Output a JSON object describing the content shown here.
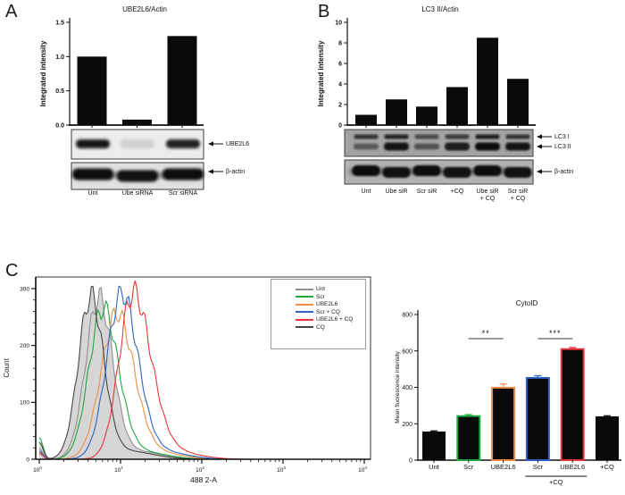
{
  "panels": {
    "a": {
      "letter": "A"
    },
    "b": {
      "letter": "B"
    },
    "c": {
      "letter": "C"
    }
  },
  "blot_a": {
    "lane_labels": [
      "Unt",
      "Ube siRNA",
      "Scr siRNA"
    ],
    "band_labels": [
      {
        "arrow": "←",
        "text": "UBE2L6"
      },
      {
        "arrow": "←",
        "text": "β-actin"
      }
    ],
    "bands": {
      "ube2l6": [
        0.95,
        0.12,
        0.9
      ],
      "actin": [
        1,
        0.97,
        1
      ]
    }
  },
  "blot_b": {
    "lane_labels": [
      "Unt",
      "Ube siR",
      "Scr siR",
      "+CQ",
      "Ube siR\n+ CQ",
      "Scr siR\n+ CQ"
    ],
    "band_labels": [
      {
        "arrow": "←",
        "text": "LC3 I"
      },
      {
        "arrow": "←",
        "text": "LC3 II"
      },
      {
        "arrow": "←",
        "text": "β-actin"
      }
    ],
    "bands": {
      "lc3i": [
        0.75,
        0.85,
        0.6,
        0.7,
        0.9,
        0.75
      ],
      "lc3ii": [
        0.5,
        0.95,
        0.55,
        0.9,
        1.0,
        0.95
      ],
      "actin": [
        1,
        0.95,
        1,
        0.95,
        1,
        0.95
      ]
    }
  },
  "chart_data": [
    {
      "id": "ube2l6_actin",
      "type": "bar",
      "title": "UBE2L6/Actin",
      "ylabel": "Integrated intensity",
      "categories": [
        "Unt",
        "Ube siRNA",
        "Scr siRNA"
      ],
      "values": [
        1.0,
        0.08,
        1.3
      ],
      "ylim": [
        0,
        1.5
      ],
      "yticks": [
        0,
        0.5,
        1,
        1.5
      ],
      "ytick_labels": [
        "0.0",
        "0.5",
        "1.0",
        "1.5"
      ],
      "bar_color": "#0a0a0a"
    },
    {
      "id": "lc3ii_actin",
      "type": "bar",
      "title": "LC3 II/Actin",
      "ylabel": "Integrated intensity",
      "categories": [
        "Unt",
        "Ube siR",
        "Scr siR",
        "+CQ",
        "Ube siR + CQ",
        "Scr siR + CQ"
      ],
      "values": [
        1.0,
        2.5,
        1.8,
        3.7,
        8.5,
        4.5
      ],
      "ylim": [
        0,
        10
      ],
      "yticks": [
        0,
        2,
        4,
        6,
        8,
        10
      ],
      "ytick_labels": [
        "0",
        "2",
        "4",
        "6",
        "8",
        "10"
      ],
      "bar_color": "#0a0a0a"
    },
    {
      "id": "cytoid_flow_histogram",
      "type": "area",
      "xlabel": "488 2-A",
      "ylabel": "Count",
      "x_scale": "log10",
      "xlim": [
        1,
        10000
      ],
      "x_tick_exponents": [
        0,
        1,
        2,
        3,
        4
      ],
      "ylim": [
        0,
        300
      ],
      "yticks": [
        0,
        100,
        200,
        300
      ],
      "legend_position": "top-right",
      "series": [
        {
          "name": "Unt",
          "color": "#8f8f8f",
          "filled": true,
          "fill_color": "#d6d6d6",
          "peak_log10_x": 0.73,
          "peak_count": 281,
          "sigma_left": 0.16,
          "sigma_right": 0.17,
          "edge_spike": 18
        },
        {
          "name": "Scr",
          "color": "#1ea83e",
          "filled": false,
          "peak_log10_x": 0.78,
          "peak_count": 263,
          "sigma_left": 0.17,
          "sigma_right": 0.19,
          "edge_spike": 38
        },
        {
          "name": "UBE2L6",
          "color": "#f08c46",
          "filled": false,
          "peak_log10_x": 0.95,
          "peak_count": 254,
          "sigma_left": 0.19,
          "sigma_right": 0.21,
          "edge_spike": 12
        },
        {
          "name": "Scr + CQ",
          "color": "#2e62c8",
          "filled": false,
          "peak_log10_x": 1.01,
          "peak_count": 289,
          "sigma_left": 0.18,
          "sigma_right": 0.2,
          "edge_spike": 14
        },
        {
          "name": "UBE2L6 + CQ",
          "color": "#e8363a",
          "filled": false,
          "peak_log10_x": 1.15,
          "peak_count": 290,
          "sigma_left": 0.17,
          "sigma_right": 0.22,
          "edge_spike": 10
        },
        {
          "name": "CQ",
          "color": "#474747",
          "filled": true,
          "fill_color": "#d6d6d6",
          "peak_log10_x": 0.63,
          "peak_count": 284,
          "sigma_left": 0.15,
          "sigma_right": 0.16,
          "edge_spike": 30
        }
      ]
    },
    {
      "id": "cytoid_mfi",
      "type": "bar",
      "title": "CytoID",
      "ylabel": "Mean fluorescence intensity",
      "categories": [
        "Unt",
        "Scr",
        "UBE2L6",
        "Scr",
        "UBE2L6",
        "+CQ"
      ],
      "values": [
        155,
        242,
        398,
        452,
        610,
        238
      ],
      "errors": [
        6,
        8,
        20,
        12,
        9,
        6
      ],
      "bar_color": "#0a0a0a",
      "edge_colors": [
        "#0a0a0a",
        "#1ea83e",
        "#f08c46",
        "#2e62c8",
        "#e8363a",
        "#0a0a0a"
      ],
      "ylim": [
        0,
        800
      ],
      "yticks": [
        0,
        200,
        400,
        600,
        800
      ],
      "ytick_labels": [
        "0",
        "200",
        "400",
        "600",
        "800"
      ],
      "significance": [
        {
          "from": 1,
          "to": 2,
          "label": "**"
        },
        {
          "from": 3,
          "to": 4,
          "label": "***"
        }
      ],
      "group_bracket": {
        "from": 3,
        "to": 4,
        "label": "+CQ"
      }
    }
  ]
}
